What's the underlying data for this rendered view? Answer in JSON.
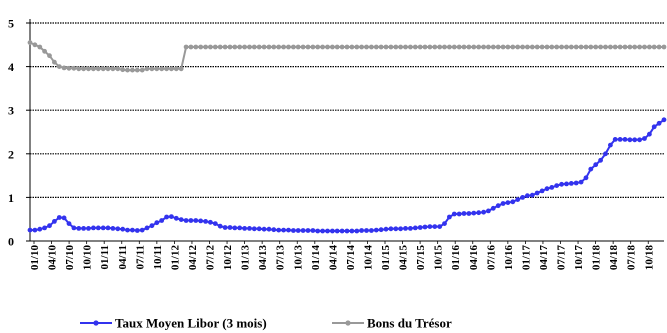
{
  "chart_data": {
    "type": "line",
    "title": "",
    "xlabel": "",
    "ylabel": "",
    "ylim": [
      0,
      5
    ],
    "y_ticks": [
      "0",
      "1",
      "2",
      "3",
      "4",
      "5"
    ],
    "x_ticks": [
      "01/10",
      "04/10",
      "07/10",
      "10/10",
      "01/11",
      "04/11",
      "07/11",
      "10/11",
      "01/12",
      "04/12",
      "07/12",
      "10/12",
      "01/13",
      "04/13",
      "07/13",
      "10/13",
      "01/14",
      "04/14",
      "07/14",
      "10/14",
      "01/15",
      "04/15",
      "07/15",
      "10/15",
      "01/16",
      "04/16",
      "07/16",
      "10/16",
      "01/17",
      "04/17",
      "07/17",
      "10/17",
      "01/18",
      "04/18",
      "07/18",
      "10/18"
    ],
    "grid": "horizontal",
    "legend_position": "bottom",
    "series": [
      {
        "name": "Taux Moyen Libor (3 mois)",
        "color": "#3333ee",
        "marker": "circle",
        "values": [
          0.25,
          0.25,
          0.27,
          0.3,
          0.35,
          0.45,
          0.54,
          0.53,
          0.4,
          0.3,
          0.29,
          0.29,
          0.29,
          0.3,
          0.3,
          0.3,
          0.3,
          0.29,
          0.28,
          0.27,
          0.25,
          0.25,
          0.24,
          0.25,
          0.3,
          0.35,
          0.42,
          0.47,
          0.55,
          0.56,
          0.52,
          0.49,
          0.47,
          0.47,
          0.47,
          0.46,
          0.45,
          0.43,
          0.4,
          0.34,
          0.31,
          0.31,
          0.3,
          0.3,
          0.29,
          0.29,
          0.28,
          0.28,
          0.27,
          0.27,
          0.26,
          0.25,
          0.25,
          0.25,
          0.24,
          0.24,
          0.24,
          0.24,
          0.24,
          0.23,
          0.23,
          0.23,
          0.23,
          0.23,
          0.23,
          0.23,
          0.23,
          0.23,
          0.24,
          0.24,
          0.24,
          0.25,
          0.26,
          0.27,
          0.28,
          0.28,
          0.28,
          0.29,
          0.29,
          0.3,
          0.31,
          0.32,
          0.33,
          0.33,
          0.33,
          0.4,
          0.55,
          0.62,
          0.62,
          0.63,
          0.63,
          0.64,
          0.65,
          0.66,
          0.69,
          0.75,
          0.81,
          0.86,
          0.88,
          0.9,
          0.95,
          1.0,
          1.04,
          1.05,
          1.1,
          1.15,
          1.2,
          1.23,
          1.27,
          1.3,
          1.31,
          1.32,
          1.33,
          1.35,
          1.45,
          1.65,
          1.75,
          1.85,
          2.0,
          2.2,
          2.33,
          2.33,
          2.33,
          2.32,
          2.32,
          2.32,
          2.35,
          2.45,
          2.62,
          2.7,
          2.78
        ]
      },
      {
        "name": "Bons du Trésor",
        "color": "#999999",
        "marker": "circle",
        "values": [
          4.55,
          4.5,
          4.45,
          4.35,
          4.25,
          4.1,
          4.0,
          3.97,
          3.96,
          3.96,
          3.95,
          3.95,
          3.95,
          3.95,
          3.95,
          3.95,
          3.95,
          3.95,
          3.95,
          3.93,
          3.92,
          3.92,
          3.92,
          3.92,
          3.95,
          3.95,
          3.95,
          3.95,
          3.95,
          3.95,
          3.95,
          3.95,
          4.45,
          4.45,
          4.45,
          4.45,
          4.45,
          4.45,
          4.45,
          4.45,
          4.45,
          4.45,
          4.45,
          4.45,
          4.45,
          4.45,
          4.45,
          4.45,
          4.45,
          4.45,
          4.45,
          4.45,
          4.45,
          4.45,
          4.45,
          4.45,
          4.45,
          4.45,
          4.45,
          4.45,
          4.45,
          4.45,
          4.45,
          4.45,
          4.45,
          4.45,
          4.45,
          4.45,
          4.45,
          4.45,
          4.45,
          4.45,
          4.45,
          4.45,
          4.45,
          4.45,
          4.45,
          4.45,
          4.45,
          4.45,
          4.45,
          4.45,
          4.45,
          4.45,
          4.45,
          4.45,
          4.45,
          4.45,
          4.45,
          4.45,
          4.45,
          4.45,
          4.45,
          4.45,
          4.45,
          4.45,
          4.45,
          4.45,
          4.45,
          4.45,
          4.45,
          4.45,
          4.45,
          4.45,
          4.45,
          4.45,
          4.45,
          4.45,
          4.45,
          4.45,
          4.45,
          4.45,
          4.45,
          4.45,
          4.45,
          4.45,
          4.45,
          4.45,
          4.45,
          4.45,
          4.45,
          4.45,
          4.45,
          4.45,
          4.45,
          4.45,
          4.45,
          4.45,
          4.45,
          4.45,
          4.45
        ]
      }
    ]
  }
}
